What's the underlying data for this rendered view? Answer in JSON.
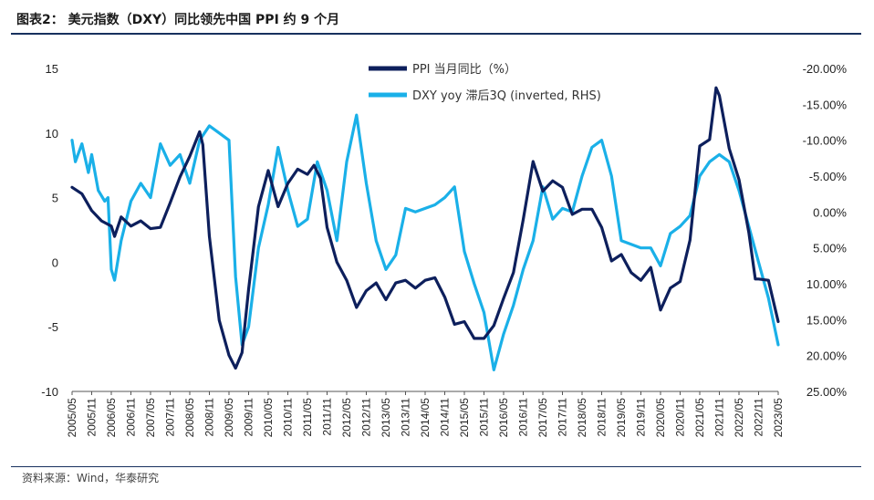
{
  "header": {
    "title": "图表2：  美元指数（DXY）同比领先中国 PPI 约 9 个月"
  },
  "footer": {
    "source": "资料来源：Wind，华泰研究"
  },
  "colors": {
    "ppi": "#0d1f5c",
    "dxy": "#1ab0e8",
    "rule": "#17305e"
  },
  "chart_data": {
    "type": "line",
    "legend": [
      "PPI 当月同比（%）",
      "DXY yoy 滞后3Q (inverted, RHS)"
    ],
    "legend_position": "top-center",
    "grid": false,
    "y_left": {
      "ylim": [
        -10,
        15
      ],
      "ticks": [
        "15",
        "10",
        "5",
        "0",
        "-5",
        "-10"
      ]
    },
    "y_right": {
      "ylim": [
        -20,
        25
      ],
      "inverted": true,
      "ticks": [
        "-20.00%",
        "-15.00%",
        "-10.00%",
        "-5.00%",
        "0.00%",
        "5.00%",
        "10.00%",
        "15.00%",
        "20.00%",
        "25.00%"
      ]
    },
    "x_ticks": [
      "2005/05",
      "2005/11",
      "2006/05",
      "2006/11",
      "2007/05",
      "2007/11",
      "2008/05",
      "2008/11",
      "2009/05",
      "2009/11",
      "2010/05",
      "2010/11",
      "2011/05",
      "2011/11",
      "2012/05",
      "2012/11",
      "2013/05",
      "2013/11",
      "2014/05",
      "2014/11",
      "2015/05",
      "2015/11",
      "2016/05",
      "2016/11",
      "2017/05",
      "2017/11",
      "2018/05",
      "2018/11",
      "2019/05",
      "2019/11",
      "2020/05",
      "2020/11",
      "2021/05",
      "2021/11",
      "2022/05",
      "2022/11",
      "2023/05"
    ],
    "series": [
      {
        "name": "PPI 当月同比（%）",
        "axis": "left",
        "points": [
          [
            "2005/05",
            5.8
          ],
          [
            "2005/08",
            5.3
          ],
          [
            "2005/11",
            4.0
          ],
          [
            "2006/02",
            3.2
          ],
          [
            "2006/05",
            2.8
          ],
          [
            "2006/06",
            2.0
          ],
          [
            "2006/08",
            3.5
          ],
          [
            "2006/11",
            2.8
          ],
          [
            "2007/02",
            3.2
          ],
          [
            "2007/05",
            2.6
          ],
          [
            "2007/08",
            2.7
          ],
          [
            "2007/11",
            4.6
          ],
          [
            "2008/02",
            6.6
          ],
          [
            "2008/05",
            8.2
          ],
          [
            "2008/08",
            10.1
          ],
          [
            "2008/09",
            9.1
          ],
          [
            "2008/11",
            2.0
          ],
          [
            "2009/02",
            -4.5
          ],
          [
            "2009/05",
            -7.2
          ],
          [
            "2009/07",
            -8.2
          ],
          [
            "2009/09",
            -7.0
          ],
          [
            "2009/11",
            -2.1
          ],
          [
            "2010/02",
            4.3
          ],
          [
            "2010/05",
            7.1
          ],
          [
            "2010/08",
            4.3
          ],
          [
            "2010/11",
            6.1
          ],
          [
            "2011/02",
            7.2
          ],
          [
            "2011/05",
            6.8
          ],
          [
            "2011/07",
            7.5
          ],
          [
            "2011/09",
            6.5
          ],
          [
            "2011/11",
            2.7
          ],
          [
            "2012/02",
            0.0
          ],
          [
            "2012/05",
            -1.4
          ],
          [
            "2012/08",
            -3.5
          ],
          [
            "2012/11",
            -2.2
          ],
          [
            "2013/02",
            -1.6
          ],
          [
            "2013/05",
            -2.9
          ],
          [
            "2013/08",
            -1.6
          ],
          [
            "2013/11",
            -1.4
          ],
          [
            "2014/02",
            -2.0
          ],
          [
            "2014/05",
            -1.4
          ],
          [
            "2014/08",
            -1.2
          ],
          [
            "2014/11",
            -2.7
          ],
          [
            "2015/02",
            -4.8
          ],
          [
            "2015/05",
            -4.6
          ],
          [
            "2015/08",
            -5.9
          ],
          [
            "2015/11",
            -5.9
          ],
          [
            "2016/02",
            -4.9
          ],
          [
            "2016/05",
            -2.8
          ],
          [
            "2016/08",
            -0.8
          ],
          [
            "2016/11",
            3.3
          ],
          [
            "2017/02",
            7.8
          ],
          [
            "2017/05",
            5.5
          ],
          [
            "2017/08",
            6.3
          ],
          [
            "2017/11",
            5.8
          ],
          [
            "2018/02",
            3.7
          ],
          [
            "2018/05",
            4.1
          ],
          [
            "2018/08",
            4.1
          ],
          [
            "2018/11",
            2.7
          ],
          [
            "2019/02",
            0.1
          ],
          [
            "2019/05",
            0.6
          ],
          [
            "2019/08",
            -0.8
          ],
          [
            "2019/11",
            -1.4
          ],
          [
            "2020/02",
            -0.4
          ],
          [
            "2020/05",
            -3.7
          ],
          [
            "2020/08",
            -2.0
          ],
          [
            "2020/11",
            -1.5
          ],
          [
            "2021/02",
            1.7
          ],
          [
            "2021/05",
            9.0
          ],
          [
            "2021/08",
            9.5
          ],
          [
            "2021/10",
            13.5
          ],
          [
            "2021/11",
            12.9
          ],
          [
            "2022/02",
            8.8
          ],
          [
            "2022/05",
            6.4
          ],
          [
            "2022/08",
            2.3
          ],
          [
            "2022/10",
            -1.3
          ],
          [
            "2022/11",
            -1.3
          ],
          [
            "2023/02",
            -1.4
          ],
          [
            "2023/05",
            -4.6
          ]
        ]
      },
      {
        "name": "DXY yoy 滞后3Q (inverted, RHS)",
        "axis": "right",
        "points": [
          [
            "2005/05",
            -10
          ],
          [
            "2005/06",
            -7
          ],
          [
            "2005/08",
            -9.5
          ],
          [
            "2005/10",
            -5.5
          ],
          [
            "2005/11",
            -8
          ],
          [
            "2006/01",
            -3
          ],
          [
            "2006/03",
            -1.5
          ],
          [
            "2006/04",
            -2
          ],
          [
            "2006/05",
            8
          ],
          [
            "2006/06",
            9.5
          ],
          [
            "2006/08",
            4
          ],
          [
            "2006/11",
            -1.5
          ],
          [
            "2007/02",
            -4
          ],
          [
            "2007/05",
            -2
          ],
          [
            "2007/08",
            -9.5
          ],
          [
            "2007/11",
            -6.5
          ],
          [
            "2008/02",
            -8
          ],
          [
            "2008/05",
            -4
          ],
          [
            "2008/08",
            -10
          ],
          [
            "2008/11",
            -12
          ],
          [
            "2009/02",
            -11
          ],
          [
            "2009/05",
            -10
          ],
          [
            "2009/07",
            9
          ],
          [
            "2009/09",
            18.5
          ],
          [
            "2009/11",
            16
          ],
          [
            "2010/02",
            5
          ],
          [
            "2010/05",
            -1
          ],
          [
            "2010/08",
            -9
          ],
          [
            "2010/11",
            -3
          ],
          [
            "2011/02",
            2
          ],
          [
            "2011/05",
            1
          ],
          [
            "2011/08",
            -7
          ],
          [
            "2011/11",
            -3
          ],
          [
            "2012/02",
            4
          ],
          [
            "2012/05",
            -7
          ],
          [
            "2012/08",
            -13.5
          ],
          [
            "2012/11",
            -4
          ],
          [
            "2013/02",
            4
          ],
          [
            "2013/05",
            8
          ],
          [
            "2013/08",
            6
          ],
          [
            "2013/11",
            -0.5
          ],
          [
            "2014/02",
            0
          ],
          [
            "2014/05",
            -0.5
          ],
          [
            "2014/08",
            -1
          ],
          [
            "2014/11",
            -2
          ],
          [
            "2015/02",
            -3.5
          ],
          [
            "2015/05",
            5.5
          ],
          [
            "2015/08",
            10
          ],
          [
            "2015/11",
            14
          ],
          [
            "2016/02",
            22
          ],
          [
            "2016/05",
            17
          ],
          [
            "2016/08",
            13
          ],
          [
            "2016/11",
            8
          ],
          [
            "2017/02",
            4
          ],
          [
            "2017/05",
            -3.5
          ],
          [
            "2017/08",
            1
          ],
          [
            "2017/11",
            -0.5
          ],
          [
            "2018/02",
            0
          ],
          [
            "2018/05",
            -5
          ],
          [
            "2018/08",
            -9
          ],
          [
            "2018/11",
            -10
          ],
          [
            "2019/02",
            -5
          ],
          [
            "2019/05",
            4
          ],
          [
            "2019/08",
            4.5
          ],
          [
            "2019/11",
            5
          ],
          [
            "2020/02",
            5
          ],
          [
            "2020/05",
            7.5
          ],
          [
            "2020/08",
            3
          ],
          [
            "2020/11",
            2
          ],
          [
            "2021/02",
            0.5
          ],
          [
            "2021/05",
            -5
          ],
          [
            "2021/08",
            -7
          ],
          [
            "2021/11",
            -8
          ],
          [
            "2022/02",
            -7
          ],
          [
            "2022/05",
            -3
          ],
          [
            "2022/08",
            2
          ],
          [
            "2022/11",
            7
          ],
          [
            "2023/02",
            12
          ],
          [
            "2023/05",
            18.5
          ]
        ]
      }
    ]
  }
}
